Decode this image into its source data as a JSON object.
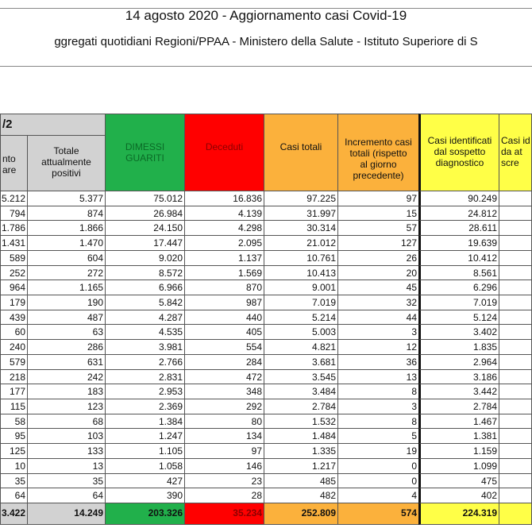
{
  "title": "14 agosto 2020 - Aggiornamento casi Covid-19",
  "subtitle": "ggregati quotidiani Regioni/PPAA - Ministero della Salute - Istituto Superiore di S",
  "group_header": "/2",
  "colors": {
    "grey": "#d2d2d2",
    "green": "#21b04b",
    "red": "#ff0000",
    "orange": "#fbb13c",
    "yellow": "#ffff47",
    "dimessi_text": "#0a6a26",
    "deceduti_text": "#8b0000"
  },
  "columns": [
    {
      "header": "nto\nare",
      "color": "grey"
    },
    {
      "header": "Totale\nattualmente\npositivi",
      "color": "grey"
    },
    {
      "header": "DIMESSI\nGUARITI",
      "color": "green"
    },
    {
      "header": "Deceduti",
      "color": "red"
    },
    {
      "header": "Casi totali",
      "color": "orange"
    },
    {
      "header": "Incremento casi\ntotali (rispetto\nal giorno\nprecedente)",
      "color": "orange"
    },
    {
      "header": "Casi identificati\ndal sospetto\ndiagnostico",
      "color": "yellow"
    },
    {
      "header": "Casi id\nda at\nscre",
      "color": "yellow"
    }
  ],
  "rows": [
    [
      "5.212",
      "5.377",
      "75.012",
      "16.836",
      "97.225",
      "97",
      "90.249",
      ""
    ],
    [
      "794",
      "874",
      "26.984",
      "4.139",
      "31.997",
      "15",
      "24.812",
      ""
    ],
    [
      "1.786",
      "1.866",
      "24.150",
      "4.298",
      "30.314",
      "57",
      "28.611",
      ""
    ],
    [
      "1.431",
      "1.470",
      "17.447",
      "2.095",
      "21.012",
      "127",
      "19.639",
      ""
    ],
    [
      "589",
      "604",
      "9.020",
      "1.137",
      "10.761",
      "26",
      "10.412",
      ""
    ],
    [
      "252",
      "272",
      "8.572",
      "1.569",
      "10.413",
      "20",
      "8.561",
      ""
    ],
    [
      "964",
      "1.165",
      "6.966",
      "870",
      "9.001",
      "45",
      "6.296",
      ""
    ],
    [
      "179",
      "190",
      "5.842",
      "987",
      "7.019",
      "32",
      "7.019",
      ""
    ],
    [
      "439",
      "487",
      "4.287",
      "440",
      "5.214",
      "44",
      "5.124",
      ""
    ],
    [
      "60",
      "63",
      "4.535",
      "405",
      "5.003",
      "3",
      "3.402",
      ""
    ],
    [
      "240",
      "286",
      "3.981",
      "554",
      "4.821",
      "12",
      "1.835",
      ""
    ],
    [
      "579",
      "631",
      "2.766",
      "284",
      "3.681",
      "36",
      "2.964",
      ""
    ],
    [
      "218",
      "242",
      "2.831",
      "472",
      "3.545",
      "13",
      "3.186",
      ""
    ],
    [
      "177",
      "183",
      "2.953",
      "348",
      "3.484",
      "8",
      "3.442",
      ""
    ],
    [
      "115",
      "123",
      "2.369",
      "292",
      "2.784",
      "3",
      "2.784",
      ""
    ],
    [
      "58",
      "68",
      "1.384",
      "80",
      "1.532",
      "8",
      "1.467",
      ""
    ],
    [
      "95",
      "103",
      "1.247",
      "134",
      "1.484",
      "5",
      "1.381",
      ""
    ],
    [
      "125",
      "133",
      "1.105",
      "97",
      "1.335",
      "19",
      "1.159",
      ""
    ],
    [
      "10",
      "13",
      "1.058",
      "146",
      "1.217",
      "0",
      "1.099",
      ""
    ],
    [
      "35",
      "35",
      "427",
      "23",
      "485",
      "0",
      "475",
      ""
    ],
    [
      "64",
      "64",
      "390",
      "28",
      "482",
      "4",
      "402",
      ""
    ]
  ],
  "totals": [
    "3.422",
    "14.249",
    "203.326",
    "35.234",
    "252.809",
    "574",
    "224.319",
    ""
  ]
}
